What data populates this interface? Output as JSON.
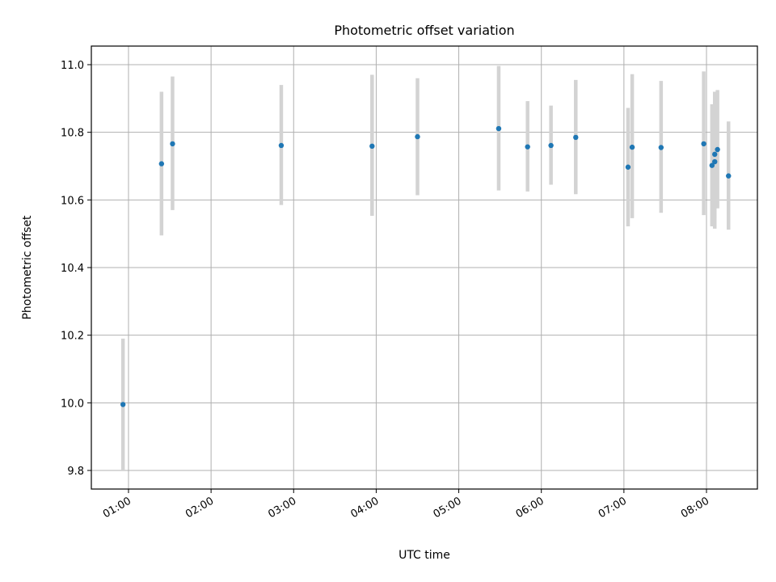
{
  "chart_data": {
    "type": "scatter",
    "title": "Photometric offset variation",
    "xlabel": "UTC time",
    "ylabel": "Photometric offset",
    "x_tick_labels": [
      "01:00",
      "02:00",
      "03:00",
      "04:00",
      "05:00",
      "06:00",
      "07:00",
      "08:00"
    ],
    "y_tick_labels": [
      "9.8",
      "10.0",
      "10.2",
      "10.4",
      "10.6",
      "10.8",
      "11.0"
    ],
    "xlim": [
      "00:33",
      "08:37"
    ],
    "ylim": [
      9.745,
      11.055
    ],
    "grid": true,
    "point_color": "#1f77b4",
    "errorbar_color": "#d3d3d3",
    "points": [
      {
        "x": "00:56",
        "y": 9.995,
        "ylow": 9.8,
        "yhigh": 10.19
      },
      {
        "x": "01:24",
        "y": 10.707,
        "ylow": 10.495,
        "yhigh": 10.92
      },
      {
        "x": "01:32",
        "y": 10.766,
        "ylow": 10.57,
        "yhigh": 10.965
      },
      {
        "x": "02:51",
        "y": 10.761,
        "ylow": 10.585,
        "yhigh": 10.94
      },
      {
        "x": "03:57",
        "y": 10.759,
        "ylow": 10.553,
        "yhigh": 10.97
      },
      {
        "x": "04:30",
        "y": 10.787,
        "ylow": 10.614,
        "yhigh": 10.96
      },
      {
        "x": "05:29",
        "y": 10.811,
        "ylow": 10.628,
        "yhigh": 10.996
      },
      {
        "x": "05:50",
        "y": 10.757,
        "ylow": 10.625,
        "yhigh": 10.892
      },
      {
        "x": "06:07",
        "y": 10.761,
        "ylow": 10.645,
        "yhigh": 10.879
      },
      {
        "x": "06:25",
        "y": 10.785,
        "ylow": 10.617,
        "yhigh": 10.955
      },
      {
        "x": "07:03",
        "y": 10.697,
        "ylow": 10.522,
        "yhigh": 10.872
      },
      {
        "x": "07:06",
        "y": 10.756,
        "ylow": 10.546,
        "yhigh": 10.972
      },
      {
        "x": "07:27",
        "y": 10.755,
        "ylow": 10.562,
        "yhigh": 10.952
      },
      {
        "x": "07:58",
        "y": 10.766,
        "ylow": 10.555,
        "yhigh": 10.98
      },
      {
        "x": "08:04",
        "y": 10.702,
        "ylow": 10.522,
        "yhigh": 10.883
      },
      {
        "x": "08:06",
        "y": 10.735,
        "ylow": 10.515,
        "yhigh": 10.92
      },
      {
        "x": "08:06",
        "y": 10.713,
        "ylow": 10.545,
        "yhigh": 10.89
      },
      {
        "x": "08:08",
        "y": 10.749,
        "ylow": 10.575,
        "yhigh": 10.925
      },
      {
        "x": "08:16",
        "y": 10.671,
        "ylow": 10.512,
        "yhigh": 10.832
      }
    ]
  }
}
